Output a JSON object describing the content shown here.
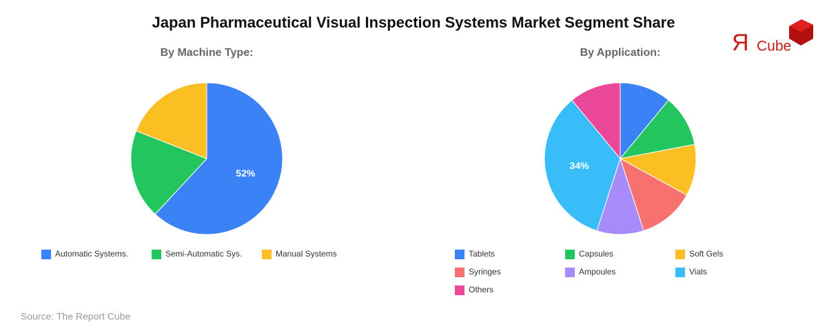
{
  "title": "Japan Pharmaceutical Visual Inspection Systems Market Segment Share",
  "logo_mark": "Я",
  "logo_text": "Cube",
  "source": "Source: The Report Cube",
  "chart_data": [
    {
      "type": "pie",
      "title": "By Machine Type:",
      "categories": [
        "Automatic Systems.",
        "Semi-Automatic Sys.",
        "Manual Systems"
      ],
      "values": [
        52,
        16,
        16
      ],
      "value_labels": [
        "52%",
        null,
        null
      ],
      "colors": [
        "#3b82f6",
        "#22c55e",
        "#fbbf24"
      ]
    },
    {
      "type": "pie",
      "title": "By Application:",
      "categories": [
        "Tablets",
        "Capsules",
        "Soft Gels",
        "Syringes",
        "Ampoules",
        "Vials",
        "Others"
      ],
      "values": [
        11,
        11,
        11,
        12,
        10,
        34,
        11
      ],
      "value_labels": [
        null,
        null,
        null,
        null,
        null,
        "34%",
        null
      ],
      "colors": [
        "#3b82f6",
        "#22c55e",
        "#fbbf24",
        "#f87171",
        "#a78bfa",
        "#38bdf8",
        "#ec4899"
      ]
    }
  ]
}
